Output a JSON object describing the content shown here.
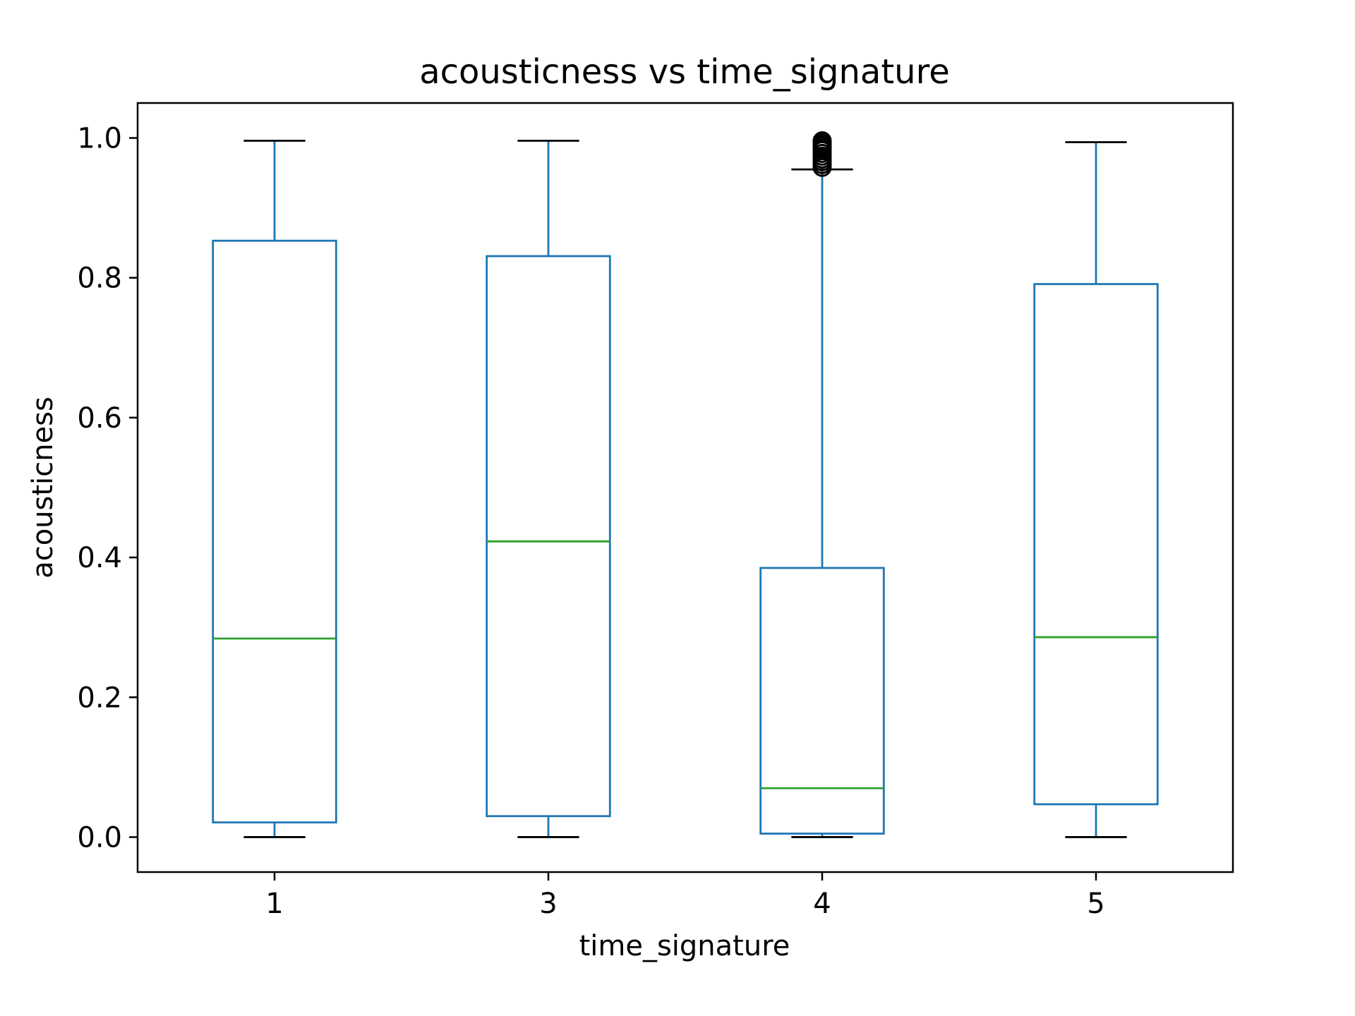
{
  "chart_data": {
    "type": "boxplot",
    "title": "acousticness vs time_signature",
    "xlabel": "time_signature",
    "ylabel": "acousticness",
    "ylim": [
      -0.05,
      1.05
    ],
    "yticks": [
      0.0,
      0.2,
      0.4,
      0.6,
      0.8,
      1.0
    ],
    "ytick_labels": [
      "0.0",
      "0.2",
      "0.4",
      "0.6",
      "0.8",
      "1.0"
    ],
    "grid": false,
    "legend": "none",
    "colors": {
      "box": "#1f77b4",
      "median": "#2ca02c",
      "cap": "#000000",
      "outlier": "#000000"
    },
    "categories": [
      "1",
      "3",
      "4",
      "5"
    ],
    "boxes": [
      {
        "category": "1",
        "whisker_low": 0.0,
        "q1": 0.021,
        "median": 0.284,
        "q3": 0.853,
        "whisker_high": 0.996,
        "outliers": []
      },
      {
        "category": "3",
        "whisker_low": 0.0,
        "q1": 0.03,
        "median": 0.423,
        "q3": 0.831,
        "whisker_high": 0.996,
        "outliers": []
      },
      {
        "category": "4",
        "whisker_low": 0.0,
        "q1": 0.005,
        "median": 0.07,
        "q3": 0.385,
        "whisker_high": 0.955,
        "outliers": [
          0.958,
          0.962,
          0.966,
          0.97,
          0.974,
          0.978,
          0.982,
          0.985,
          0.988,
          0.991,
          0.994,
          0.996
        ]
      },
      {
        "category": "5",
        "whisker_low": 0.0,
        "q1": 0.047,
        "median": 0.286,
        "q3": 0.791,
        "whisker_high": 0.994,
        "outliers": []
      }
    ]
  }
}
